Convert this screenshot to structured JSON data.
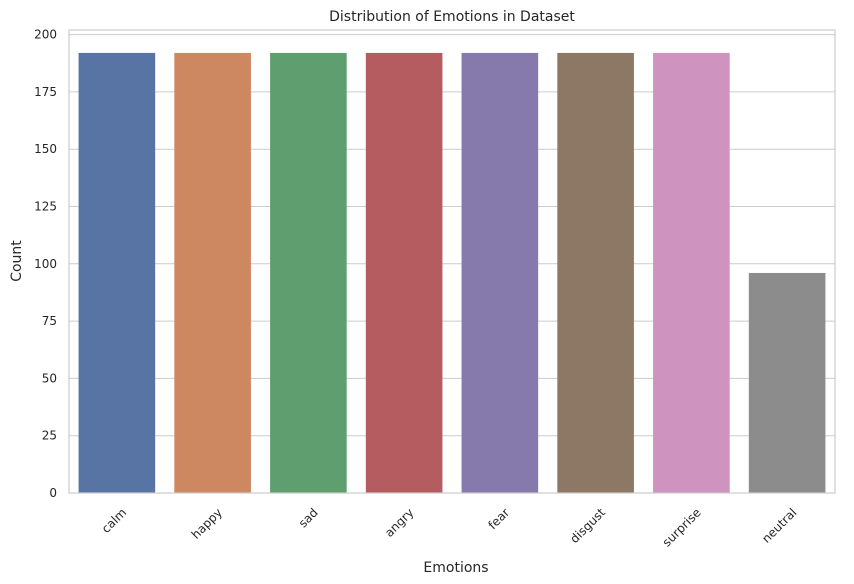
{
  "chart_data": {
    "type": "bar",
    "title": "Distribution of Emotions in Dataset",
    "xlabel": "Emotions",
    "ylabel": "Count",
    "categories": [
      "calm",
      "happy",
      "sad",
      "angry",
      "fear",
      "disgust",
      "surprise",
      "neutral"
    ],
    "values": [
      192,
      192,
      192,
      192,
      192,
      192,
      192,
      96
    ],
    "colors": [
      "#5874a5",
      "#cd8862",
      "#5f9f6f",
      "#b55c60",
      "#857aab",
      "#8c7864",
      "#cf93bf",
      "#8c8c8c"
    ],
    "ylim": [
      0,
      202
    ],
    "yticks": [
      0,
      25,
      50,
      75,
      100,
      125,
      150,
      175,
      200
    ],
    "grid": "horizontal",
    "xtick_rotation": 45
  }
}
